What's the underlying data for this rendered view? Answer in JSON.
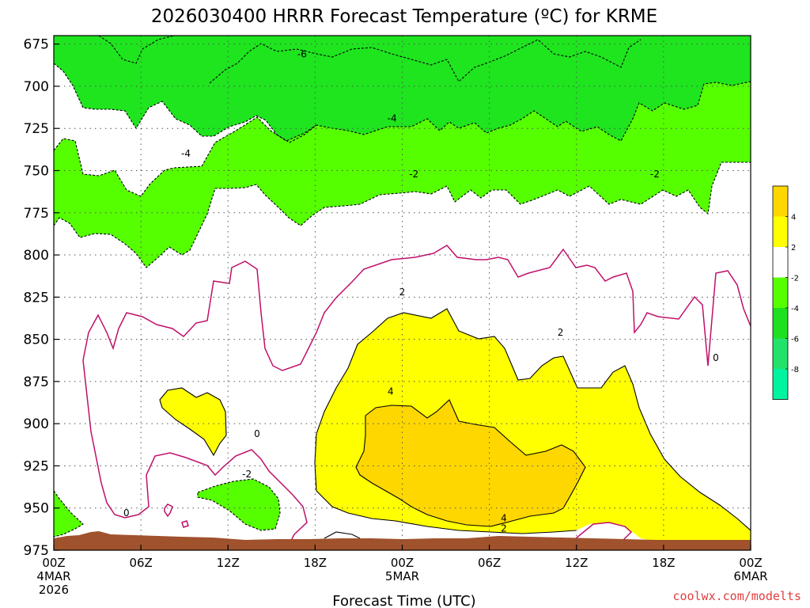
{
  "chart_data": {
    "type": "contour",
    "title": "2026030400 HRRR Forecast Temperature (ºC) for KRME",
    "xlabel": "Forecast Time (UTC)",
    "ylabel": "",
    "credit": "coolwx.com/modelts",
    "y_unit": "pressure (hPa)",
    "ylim": [
      975,
      670
    ],
    "y_ticks": [
      "675",
      "700",
      "725",
      "750",
      "775",
      "800",
      "825",
      "850",
      "875",
      "900",
      "925",
      "950",
      "975"
    ],
    "x_unit": "forecast hour",
    "xlim": [
      0,
      48
    ],
    "x_ticks": [
      {
        "hour": 0,
        "lines": [
          "00Z",
          "4MAR",
          "2026"
        ]
      },
      {
        "hour": 6,
        "lines": [
          "06Z"
        ]
      },
      {
        "hour": 12,
        "lines": [
          "12Z"
        ]
      },
      {
        "hour": 18,
        "lines": [
          "18Z"
        ]
      },
      {
        "hour": 24,
        "lines": [
          "00Z",
          "5MAR"
        ]
      },
      {
        "hour": 30,
        "lines": [
          "06Z"
        ]
      },
      {
        "hour": 36,
        "lines": [
          "12Z"
        ]
      },
      {
        "hour": 42,
        "lines": [
          "18Z"
        ]
      },
      {
        "hour": 48,
        "lines": [
          "00Z",
          "6MAR"
        ]
      }
    ],
    "grid": true,
    "contour_labels": [
      {
        "text": "-6",
        "hour": 17.1,
        "p": 681
      },
      {
        "text": "-4",
        "hour": 23.3,
        "p": 719
      },
      {
        "text": "-4",
        "hour": 9.1,
        "p": 740
      },
      {
        "text": "-2",
        "hour": 24.8,
        "p": 752
      },
      {
        "text": "-2",
        "hour": 41.4,
        "p": 752
      },
      {
        "text": "2",
        "hour": 24.0,
        "p": 822
      },
      {
        "text": "2",
        "hour": 34.9,
        "p": 846
      },
      {
        "text": "0",
        "hour": 45.6,
        "p": 861
      },
      {
        "text": "4",
        "hour": 23.2,
        "p": 881
      },
      {
        "text": "0",
        "hour": 14.0,
        "p": 906
      },
      {
        "text": "-2",
        "hour": 13.3,
        "p": 930
      },
      {
        "text": "0",
        "hour": 5.0,
        "p": 953
      },
      {
        "text": "4",
        "hour": 31.0,
        "p": 956
      },
      {
        "text": "2",
        "hour": 31.0,
        "p": 962
      }
    ],
    "colorbar": {
      "levels": [
        "4",
        "2",
        "-2",
        "-4",
        "-6",
        "-8"
      ],
      "colors": [
        "#ffd700",
        "#ffff00",
        "#ffffff",
        "#55ff00",
        "#1ee01e",
        "#22e26a",
        "#00f4a0"
      ]
    },
    "colors": {
      "lt_m6": "#00e28c",
      "m6_m4": "#1ee51e",
      "m4_m2": "#55ff00",
      "m2_2": "#ffffff",
      "p2_4": "#ffff00",
      "gt_4": "#ffd700",
      "zero_line": "#c0106a",
      "ground": "#a0522d"
    }
  }
}
